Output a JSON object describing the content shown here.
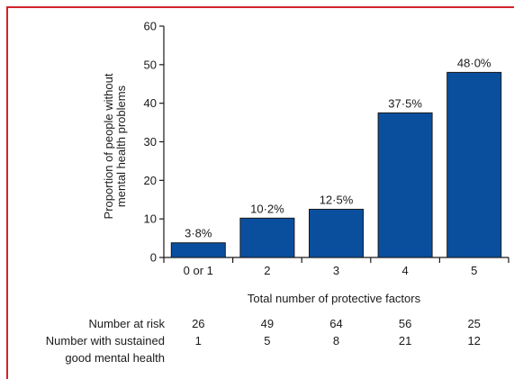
{
  "frame_color": "#d2232a",
  "bar_color": "#0a4f9e",
  "chart_data": {
    "type": "bar",
    "categories": [
      "0 or 1",
      "2",
      "3",
      "4",
      "5"
    ],
    "values": [
      3.8,
      10.2,
      12.5,
      37.5,
      48.0
    ],
    "data_labels": [
      "3·8%",
      "10·2%",
      "12·5%",
      "37·5%",
      "48·0%"
    ],
    "xlabel": "Total number of protective factors",
    "ylabel_lines": [
      "Proportion of people without",
      "mental health problems"
    ],
    "ylim": [
      0,
      60
    ],
    "yticks": [
      0,
      10,
      20,
      30,
      40,
      50,
      60
    ],
    "grid": false,
    "risk_table": {
      "rows": [
        {
          "label_lines": [
            "Number at risk"
          ],
          "values": [
            "26",
            "49",
            "64",
            "56",
            "25"
          ]
        },
        {
          "label_lines": [
            "Number with sustained",
            "good mental health"
          ],
          "values": [
            "1",
            "5",
            "8",
            "21",
            "12"
          ]
        }
      ]
    }
  }
}
